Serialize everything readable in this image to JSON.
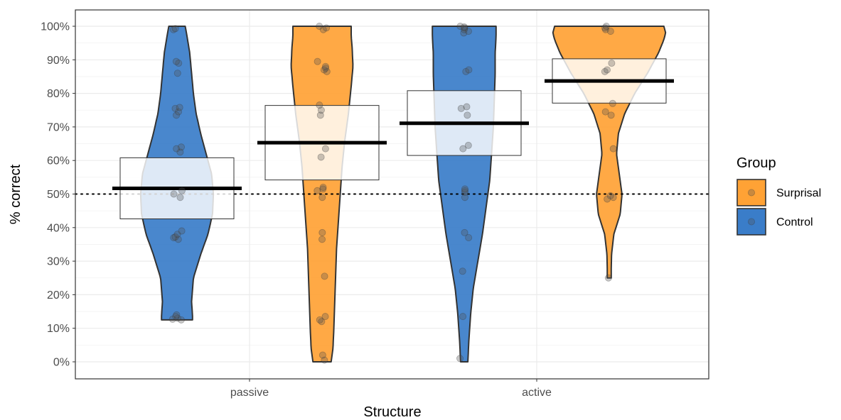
{
  "chart_data": {
    "type": "violin",
    "xlabel": "Structure",
    "ylabel": "% correct",
    "categories": [
      "passive",
      "active"
    ],
    "ylim": [
      0,
      100
    ],
    "yticks": [
      "0%",
      "10%",
      "20%",
      "30%",
      "40%",
      "50%",
      "60%",
      "70%",
      "80%",
      "90%",
      "100%"
    ],
    "reference_line": {
      "y": 50,
      "style": "dotted"
    },
    "grid": true,
    "legend": {
      "title": "Group",
      "position": "right",
      "entries": [
        {
          "name": "Surprisal",
          "color": "#ffa235"
        },
        {
          "name": "Control",
          "color": "#3a7dc9"
        }
      ]
    },
    "series": [
      {
        "name": "Control",
        "category": "passive",
        "color": "#3a7dc9",
        "mean": 51.7,
        "box": [
          42.6,
          60.8
        ],
        "profile": [
          [
            12.5,
            0.17
          ],
          [
            14,
            0.17
          ],
          [
            18,
            0.16
          ],
          [
            25,
            0.18
          ],
          [
            32,
            0.26
          ],
          [
            38,
            0.34
          ],
          [
            44,
            0.39
          ],
          [
            50,
            0.4
          ],
          [
            56,
            0.38
          ],
          [
            62,
            0.32
          ],
          [
            68,
            0.26
          ],
          [
            74,
            0.21
          ],
          [
            80,
            0.18
          ],
          [
            86,
            0.16
          ],
          [
            92,
            0.14
          ],
          [
            97,
            0.11
          ],
          [
            100,
            0.09
          ]
        ],
        "points": [
          12.5,
          12.7,
          13.0,
          13.5,
          14.0,
          36.5,
          37.0,
          37.2,
          38.0,
          39.0,
          49.0,
          50.0,
          51.0,
          62.5,
          63.5,
          64.0,
          73.5,
          74.5,
          75.5,
          75.8,
          86.0,
          89.0,
          89.5,
          99.0,
          99.3
        ]
      },
      {
        "name": "Surprisal",
        "category": "passive",
        "color": "#ffa235",
        "mean": 65.3,
        "box": [
          54.2,
          76.4
        ],
        "profile": [
          [
            0,
            0.1
          ],
          [
            4,
            0.12
          ],
          [
            10,
            0.13
          ],
          [
            18,
            0.14
          ],
          [
            26,
            0.15
          ],
          [
            34,
            0.16
          ],
          [
            42,
            0.18
          ],
          [
            50,
            0.2
          ],
          [
            58,
            0.22
          ],
          [
            66,
            0.25
          ],
          [
            74,
            0.29
          ],
          [
            82,
            0.32
          ],
          [
            88,
            0.34
          ],
          [
            94,
            0.33
          ],
          [
            97,
            0.32
          ],
          [
            100,
            0.32
          ]
        ],
        "points": [
          0.5,
          2.0,
          12.0,
          12.5,
          13.5,
          25.5,
          36.5,
          38.5,
          49.0,
          51.0,
          51.5,
          52.0,
          61.0,
          63.5,
          73.5,
          75.0,
          76.5,
          86.5,
          87.0,
          87.5,
          88.0,
          89.5,
          99.0,
          99.5,
          100.0
        ]
      },
      {
        "name": "Control",
        "category": "active",
        "color": "#3a7dc9",
        "mean": 71.1,
        "box": [
          61.5,
          80.8
        ],
        "profile": [
          [
            0,
            0.04
          ],
          [
            6,
            0.05
          ],
          [
            14,
            0.07
          ],
          [
            22,
            0.1
          ],
          [
            30,
            0.15
          ],
          [
            38,
            0.2
          ],
          [
            46,
            0.24
          ],
          [
            54,
            0.28
          ],
          [
            62,
            0.3
          ],
          [
            70,
            0.32
          ],
          [
            78,
            0.33
          ],
          [
            86,
            0.34
          ],
          [
            92,
            0.34
          ],
          [
            97,
            0.35
          ],
          [
            100,
            0.35
          ]
        ],
        "points": [
          1.0,
          13.5,
          27.0,
          37.0,
          38.5,
          49.0,
          50.5,
          51.0,
          51.5,
          63.5,
          64.5,
          73.5,
          75.5,
          76.0,
          86.5,
          87.0,
          98.0,
          98.5,
          99.0,
          99.5,
          99.8,
          100.0
        ]
      },
      {
        "name": "Surprisal",
        "category": "active",
        "color": "#ffa235",
        "mean": 83.7,
        "box": [
          77.1,
          90.3
        ],
        "profile": [
          [
            25,
            0.022
          ],
          [
            28,
            0.022
          ],
          [
            32,
            0.025
          ],
          [
            38,
            0.05
          ],
          [
            44,
            0.12
          ],
          [
            50,
            0.14
          ],
          [
            56,
            0.11
          ],
          [
            62,
            0.08
          ],
          [
            68,
            0.1
          ],
          [
            74,
            0.17
          ],
          [
            80,
            0.28
          ],
          [
            86,
            0.42
          ],
          [
            92,
            0.54
          ],
          [
            96,
            0.6
          ],
          [
            98,
            0.62
          ],
          [
            100,
            0.6
          ]
        ],
        "points": [
          25.0,
          48.5,
          49.0,
          49.5,
          63.5,
          73.5,
          74.5,
          77.0,
          86.5,
          87.0,
          89.0,
          98.5,
          99.0,
          99.5,
          100.0
        ]
      }
    ]
  }
}
